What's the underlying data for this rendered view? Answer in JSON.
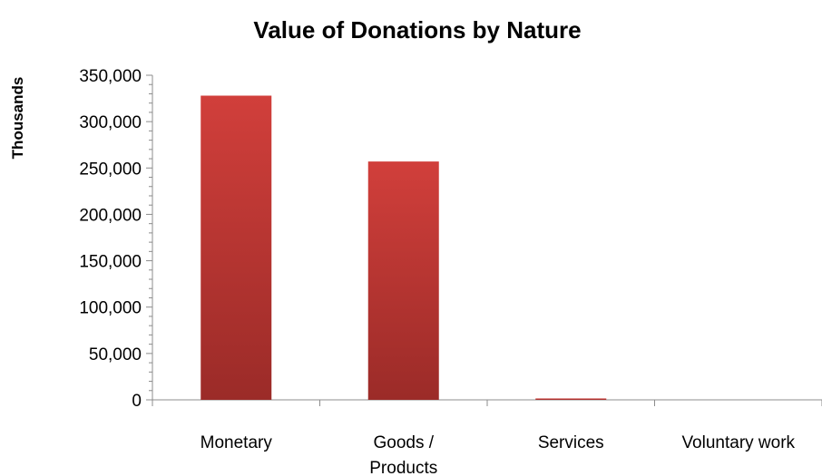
{
  "chart_data": {
    "type": "bar",
    "title": "Value of Donations by Nature",
    "ylabel": "Thousands",
    "xlabel": "",
    "categories": [
      "Monetary",
      "Goods / Products",
      "Services",
      "Voluntary work"
    ],
    "category_lines": [
      [
        "Monetary"
      ],
      [
        "Goods /",
        "Products"
      ],
      [
        "Services"
      ],
      [
        "Voluntary work"
      ]
    ],
    "values": [
      328000,
      257000,
      1500,
      0
    ],
    "ylim": [
      0,
      350000
    ],
    "yticks": [
      "0",
      "50,000",
      "100,000",
      "150,000",
      "200,000",
      "250,000",
      "300,000",
      "350,000"
    ],
    "grid": false,
    "legend": "none",
    "colors": {
      "bar_top": "#d13f3b",
      "bar_bottom": "#9b2b28",
      "axis": "#8c8c8c"
    }
  }
}
